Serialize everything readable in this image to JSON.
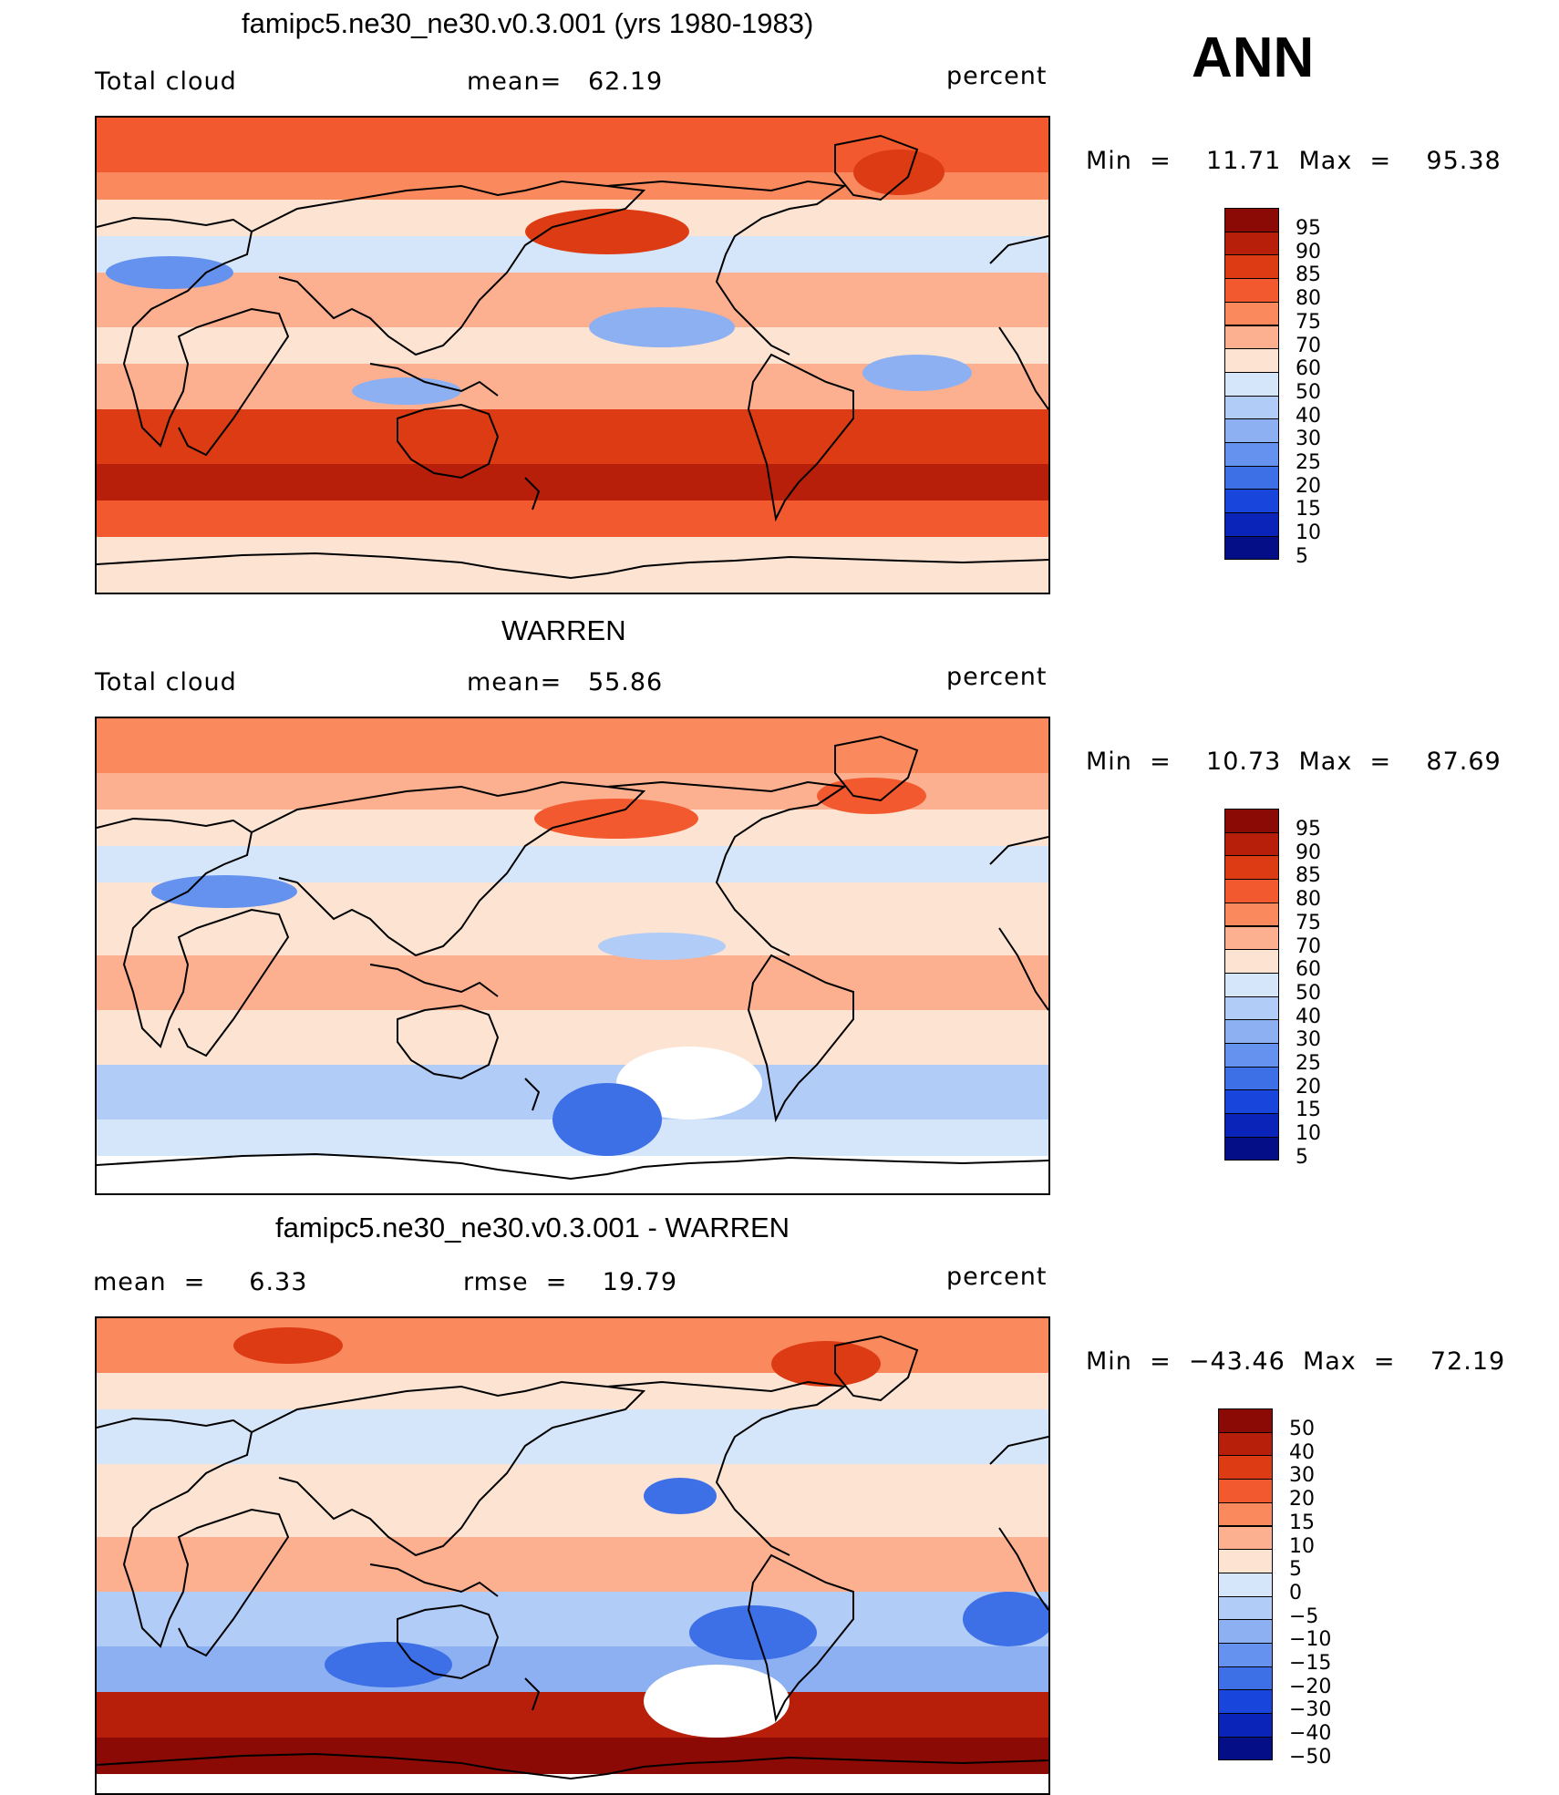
{
  "season": "ANN",
  "panels": [
    {
      "title": "famipc5.ne30_ne30.v0.3.001 (yrs 1980-1983)",
      "left_label": "Total cloud",
      "mid_label": "mean=   62.19",
      "right_label": "percent",
      "minmax": "Min  =    11.71  Max  =    95.38",
      "colorbar_labels": [
        "95",
        "90",
        "85",
        "80",
        "75",
        "70",
        "60",
        "50",
        "40",
        "30",
        "25",
        "20",
        "15",
        "10",
        "5"
      ]
    },
    {
      "title": "WARREN",
      "left_label": "Total cloud",
      "mid_label": "mean=   55.86",
      "right_label": "percent",
      "minmax": "Min  =    10.73  Max  =    87.69",
      "colorbar_labels": [
        "95",
        "90",
        "85",
        "80",
        "75",
        "70",
        "60",
        "50",
        "40",
        "30",
        "25",
        "20",
        "15",
        "10",
        "5"
      ]
    },
    {
      "title": "famipc5.ne30_ne30.v0.3.001 - WARREN",
      "left_label": "mean  =     6.33",
      "mid_label": "rmse  =    19.79",
      "right_label": "percent",
      "minmax": "Min  =  −43.46  Max  =    72.19",
      "colorbar_labels": [
        "50",
        "40",
        "30",
        "20",
        "15",
        "10",
        "5",
        "0",
        "−5",
        "−10",
        "−15",
        "−20",
        "−30",
        "−40",
        "−50"
      ]
    }
  ],
  "colors": {
    "scale": [
      "#8b0a05",
      "#b81f0a",
      "#dc3b14",
      "#f2592f",
      "#fa8a5e",
      "#fcb090",
      "#fde3d2",
      "#d6e6fa",
      "#b0ccf7",
      "#8db0f2",
      "#6492ee",
      "#3d6fe6",
      "#1845dc",
      "#0a23b8",
      "#040e86"
    ],
    "land_outline": "#000000"
  }
}
